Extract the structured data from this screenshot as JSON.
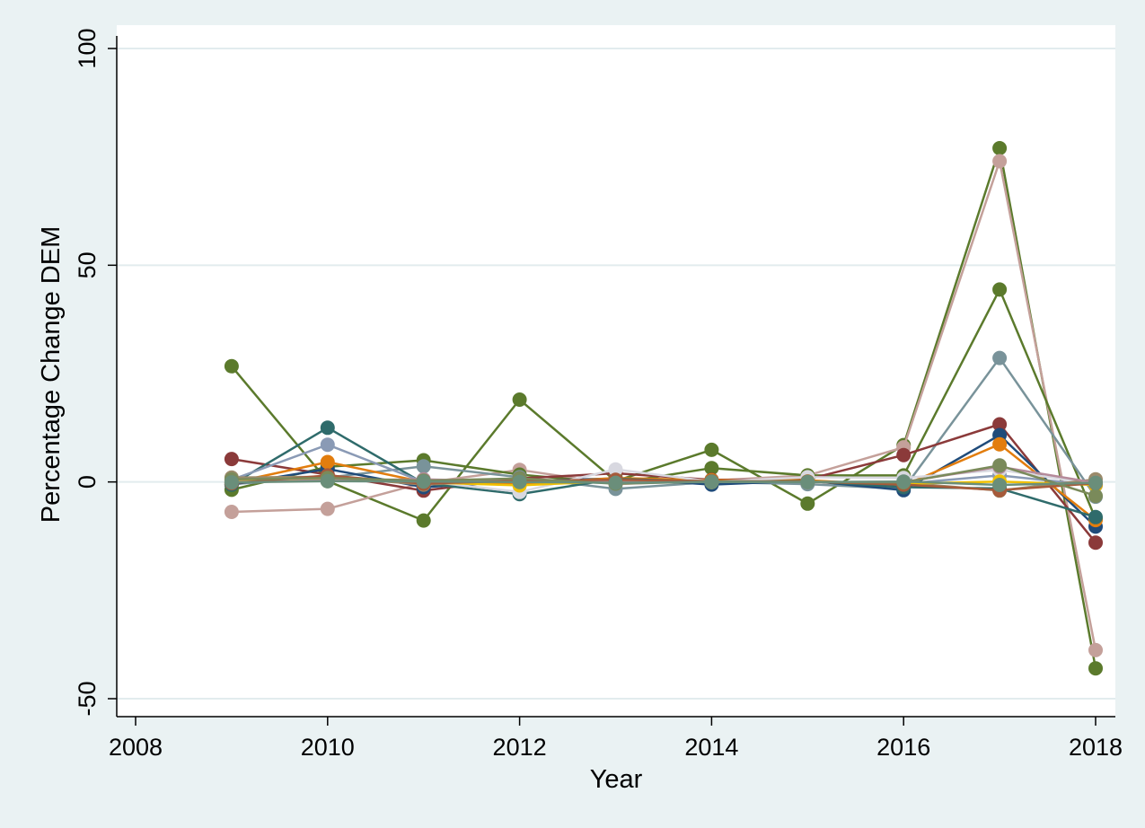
{
  "chart_data": {
    "type": "line",
    "title": "",
    "xlabel": "Year",
    "ylabel": "Percentage Change DEM",
    "xlim": [
      2008,
      2018
    ],
    "ylim": [
      -50,
      100
    ],
    "xticks": [
      2008,
      2010,
      2012,
      2014,
      2016,
      2018
    ],
    "yticks": [
      -50,
      0,
      50,
      100
    ],
    "grid": true,
    "legend": "none",
    "x": [
      2009,
      2010,
      2011,
      2012,
      2013,
      2014,
      2015,
      2016,
      2017,
      2018
    ],
    "series": [
      {
        "color": "#5b7a2c",
        "values": [
          26.7,
          0.2,
          -8.9,
          19.0,
          0.2,
          7.4,
          -5.0,
          8.5,
          77.0,
          -43.0
        ]
      },
      {
        "color": "#c4a09a",
        "values": [
          -6.9,
          -6.2,
          -0.2,
          2.8,
          -0.5,
          0.3,
          1.5,
          8.0,
          74.0,
          -38.8
        ]
      },
      {
        "color": "#5b7a2c",
        "values": [
          -1.8,
          3.5,
          5.0,
          1.7,
          -0.3,
          3.2,
          1.5,
          1.5,
          44.4,
          -8.5
        ]
      },
      {
        "color": "#79939a",
        "values": [
          -0.5,
          1.0,
          3.6,
          1.1,
          -1.6,
          0.0,
          -0.5,
          -1.6,
          28.6,
          -3.4
        ]
      },
      {
        "color": "#8b3a3a",
        "values": [
          5.3,
          1.7,
          -2.0,
          0.8,
          2.0,
          0.5,
          0.6,
          6.2,
          13.3,
          -14.0
        ]
      },
      {
        "color": "#1f4b7a",
        "values": [
          -0.6,
          3.0,
          -1.2,
          0.2,
          0.8,
          -0.6,
          0.3,
          -1.9,
          10.8,
          -10.3
        ]
      },
      {
        "color": "#e27d0e",
        "values": [
          -0.2,
          4.6,
          0.0,
          -0.5,
          0.9,
          0.4,
          0.4,
          -0.8,
          8.7,
          -8.8
        ]
      },
      {
        "color": "#2f6b6b",
        "values": [
          -0.6,
          12.5,
          -0.3,
          -2.8,
          0.7,
          0.1,
          0.2,
          -1.2,
          -1.5,
          -8.1
        ]
      },
      {
        "color": "#8a9ab5",
        "values": [
          0.5,
          8.6,
          0.0,
          0.2,
          0.4,
          0.0,
          0.1,
          -0.4,
          1.5,
          -0.8
        ]
      },
      {
        "color": "#d8d8e0",
        "values": [
          0.2,
          0.5,
          0.2,
          -2.3,
          2.9,
          0.1,
          1.1,
          0.9,
          2.8,
          -0.5
        ]
      },
      {
        "color": "#9b8a6a",
        "values": [
          1.0,
          1.2,
          -0.6,
          0.4,
          0.3,
          0.2,
          0.0,
          -0.2,
          -2.0,
          0.6
        ]
      },
      {
        "color": "#f0c000",
        "values": [
          0.3,
          0.7,
          -0.1,
          -0.8,
          0.2,
          0.0,
          0.1,
          -0.4,
          0.1,
          -0.7
        ]
      },
      {
        "color": "#b58a9a",
        "values": [
          0.0,
          0.4,
          0.6,
          0.1,
          0.0,
          0.1,
          0.0,
          0.0,
          3.5,
          -0.2
        ]
      },
      {
        "color": "#a65a3a",
        "values": [
          -0.3,
          1.5,
          -0.4,
          0.3,
          0.5,
          0.2,
          0.1,
          -0.6,
          -1.9,
          -0.3
        ]
      },
      {
        "color": "#7a8a5a",
        "values": [
          0.6,
          0.9,
          0.3,
          0.8,
          -0.4,
          0.1,
          0.0,
          -0.1,
          3.8,
          -3.2
        ]
      },
      {
        "color": "#6a8e7a",
        "values": [
          -0.1,
          0.2,
          0.1,
          0.0,
          -0.2,
          0.0,
          0.0,
          0.1,
          -0.7,
          -0.2
        ]
      }
    ]
  }
}
